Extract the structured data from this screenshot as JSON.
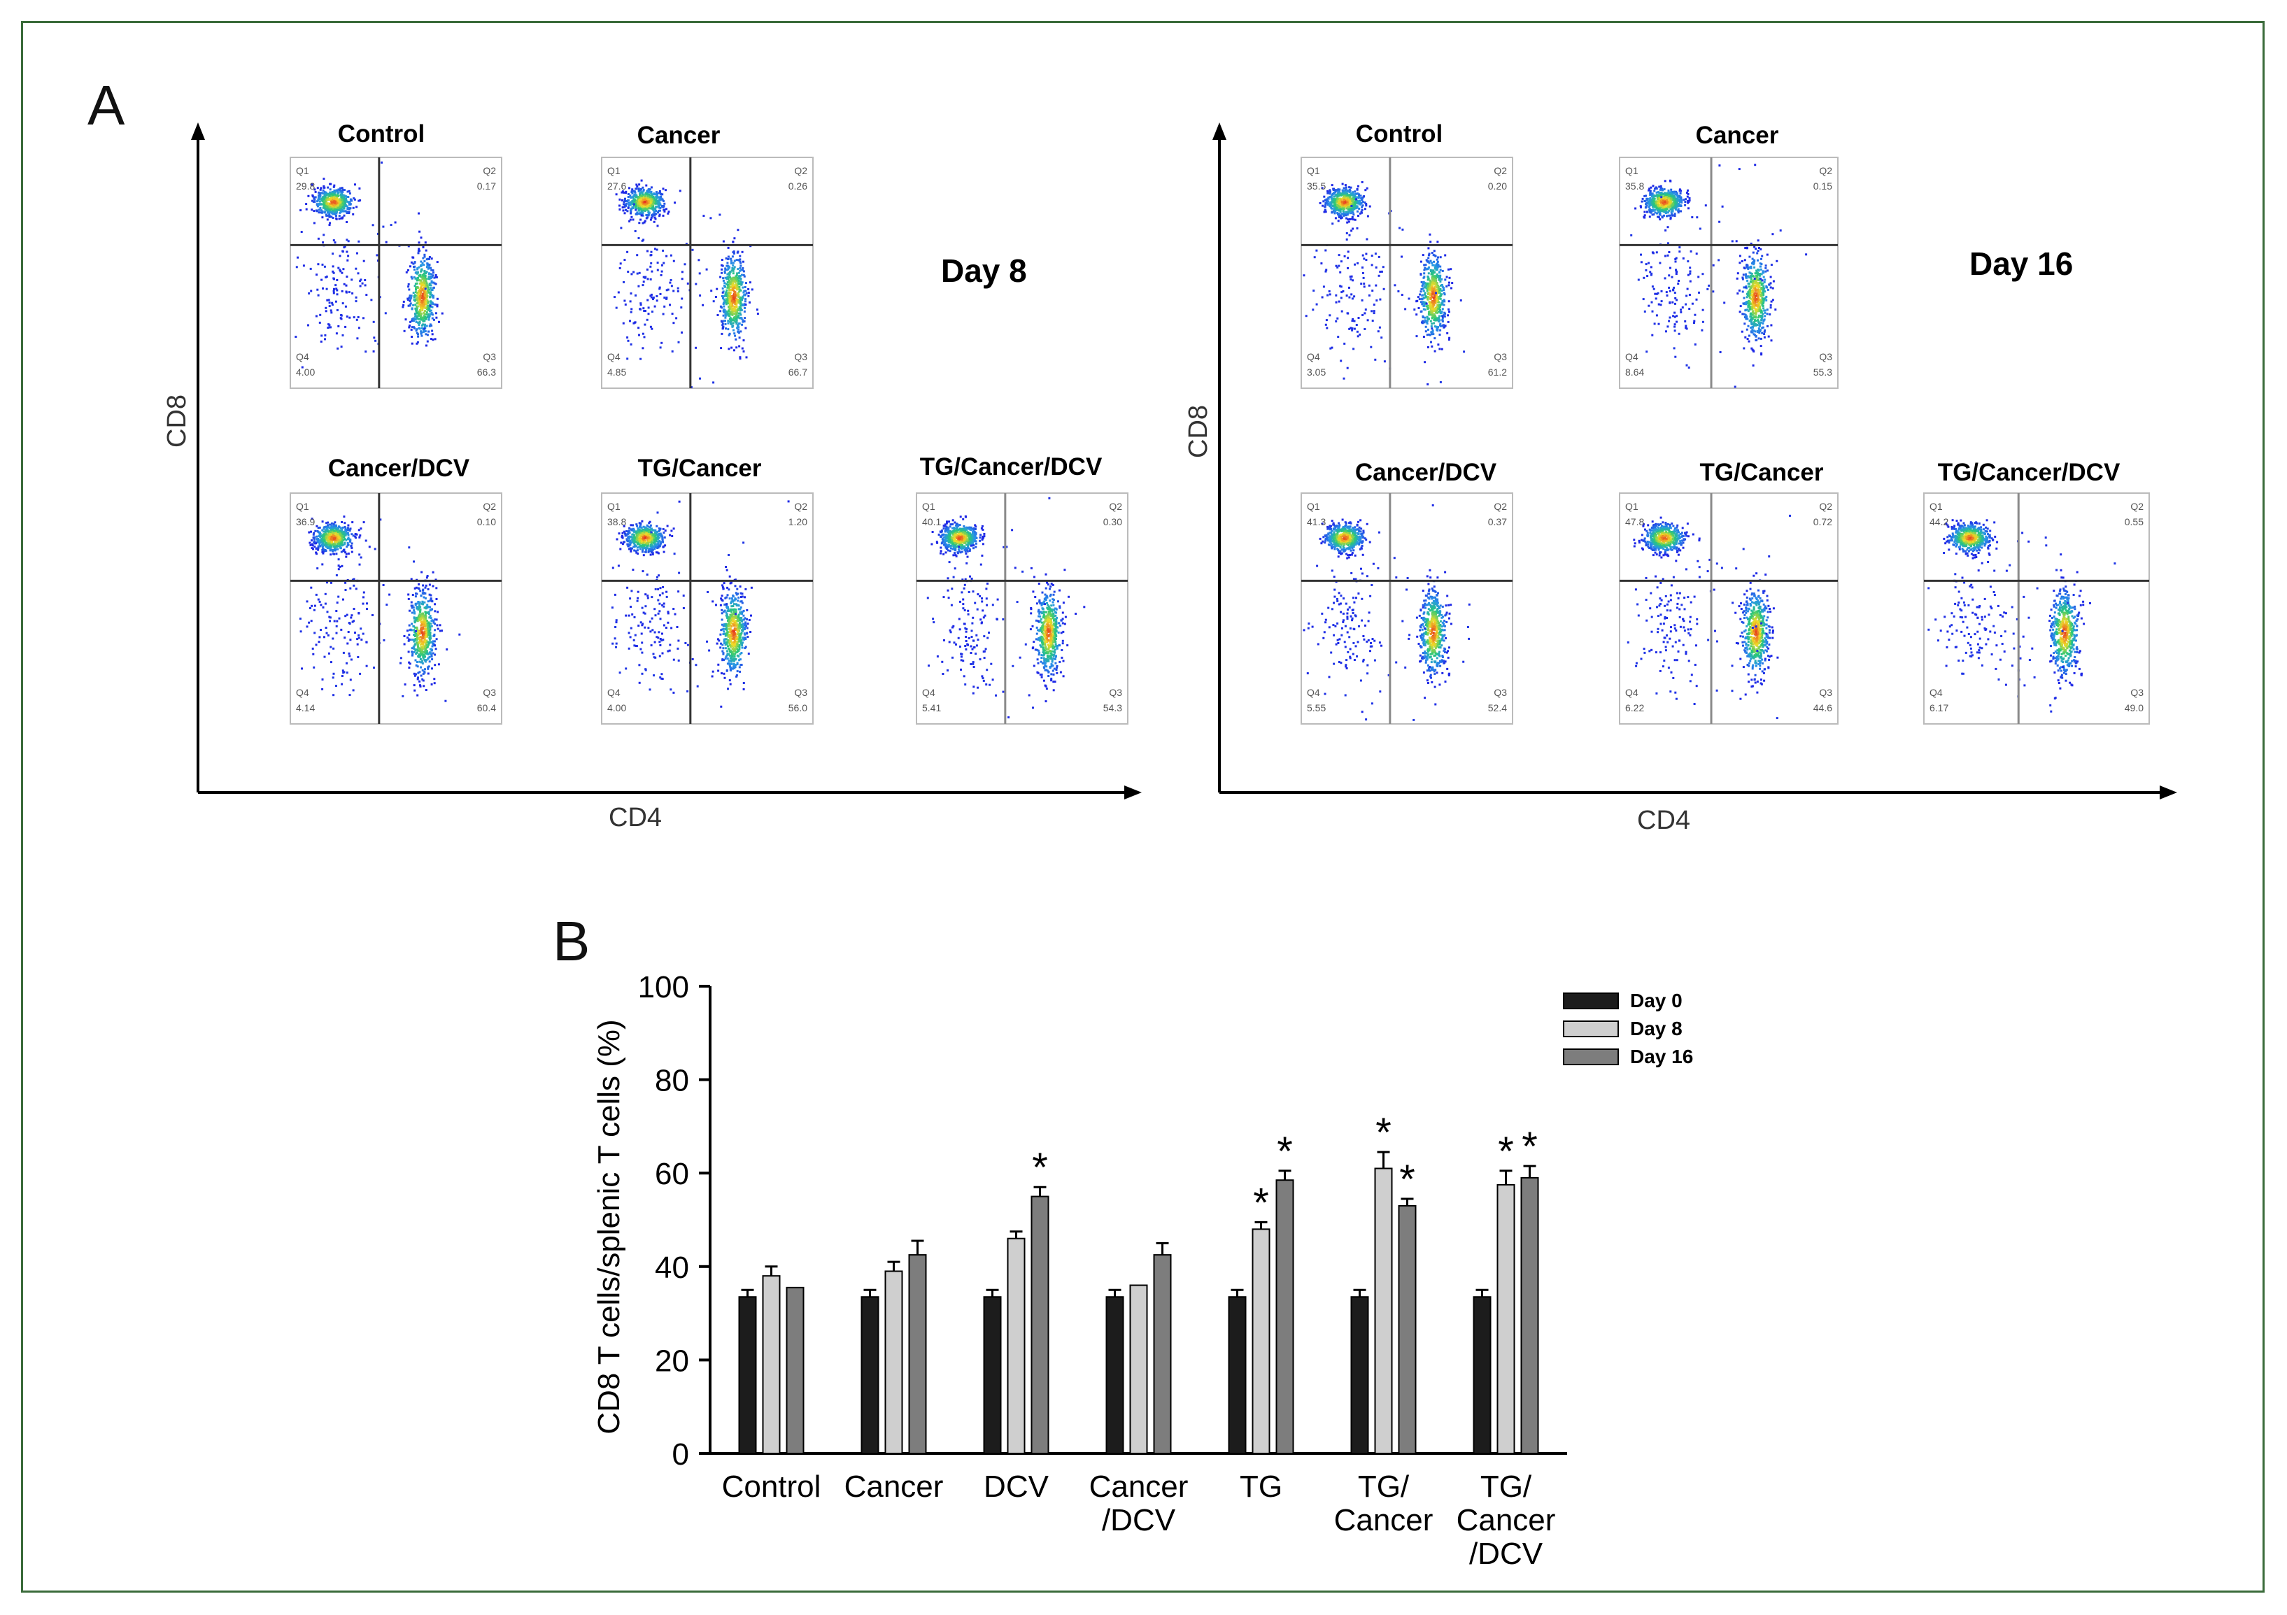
{
  "panel_a": {
    "label": "A",
    "groups": [
      {
        "day_label": "Day 8",
        "x_axis_label": "CD4",
        "y_axis_label": "CD8",
        "plots": [
          {
            "title": "Control",
            "q1": "29.8",
            "q2": "0.17",
            "q3": "66.3",
            "q4": "4.00"
          },
          {
            "title": "Cancer",
            "q1": "27.6",
            "q2": "0.26",
            "q3": "66.7",
            "q4": "4.85"
          },
          {
            "title": "Cancer/DCV",
            "q1": "36.9",
            "q2": "0.10",
            "q3": "60.4",
            "q4": "4.14"
          },
          {
            "title": "TG/Cancer",
            "q1": "38.8",
            "q2": "1.20",
            "q3": "56.0",
            "q4": "4.00"
          },
          {
            "title": "TG/Cancer/DCV",
            "q1": "40.1",
            "q2": "0.30",
            "q3": "54.3",
            "q4": "5.41"
          }
        ]
      },
      {
        "day_label": "Day 16",
        "x_axis_label": "CD4",
        "y_axis_label": "CD8",
        "plots": [
          {
            "title": "Control",
            "q1": "35.5",
            "q2": "0.20",
            "q3": "61.2",
            "q4": "3.05"
          },
          {
            "title": "Cancer",
            "q1": "35.8",
            "q2": "0.15",
            "q3": "55.3",
            "q4": "8.64"
          },
          {
            "title": "Cancer/DCV",
            "q1": "41.3",
            "q2": "0.37",
            "q3": "52.4",
            "q4": "5.55"
          },
          {
            "title": "TG/Cancer",
            "q1": "47.8",
            "q2": "0.72",
            "q3": "44.6",
            "q4": "6.22"
          },
          {
            "title": "TG/Cancer/DCV",
            "q1": "44.2",
            "q2": "0.55",
            "q3": "49.0",
            "q4": "6.17"
          }
        ]
      }
    ]
  },
  "chart_data": {
    "type": "bar",
    "panel_label": "B",
    "title": "",
    "xlabel": "",
    "ylabel": "CD8 T cells/splenic T cells (%)",
    "ylim": [
      0,
      100
    ],
    "yticks": [
      0,
      20,
      40,
      60,
      80,
      100
    ],
    "categories": [
      [
        "Control"
      ],
      [
        "Cancer"
      ],
      [
        "DCV"
      ],
      [
        "Cancer",
        "/DCV"
      ],
      [
        "TG"
      ],
      [
        "TG/",
        "Cancer"
      ],
      [
        "TG/",
        "Cancer",
        "/DCV"
      ]
    ],
    "series": [
      {
        "name": "Day 0",
        "color": "#1c1c1c",
        "values": [
          33.5,
          33.5,
          33.5,
          33.5,
          33.5,
          33.5,
          33.5
        ],
        "errors": [
          1.5,
          1.5,
          1.5,
          1.5,
          1.5,
          1.5,
          1.5
        ],
        "significant": [
          false,
          false,
          false,
          false,
          false,
          false,
          false
        ]
      },
      {
        "name": "Day 8",
        "color": "#cfcfcf",
        "values": [
          38,
          39,
          46,
          36,
          48,
          61,
          57.5
        ],
        "errors": [
          2,
          2,
          1.5,
          0,
          1.5,
          3.5,
          3
        ],
        "significant": [
          false,
          false,
          false,
          false,
          true,
          true,
          true
        ]
      },
      {
        "name": "Day 16",
        "color": "#7d7d7d",
        "values": [
          35.5,
          42.5,
          55,
          42.5,
          58.5,
          53,
          59
        ],
        "errors": [
          0,
          3,
          2,
          2.5,
          2,
          1.5,
          2.5
        ],
        "significant": [
          false,
          false,
          true,
          false,
          true,
          true,
          true
        ]
      }
    ],
    "significance_marker": "*",
    "legend_position": "top-right"
  },
  "colors": {
    "frame": "#3a6b3a",
    "axis": "#000000",
    "gate_line": "#333333",
    "gate_line_light": "#888888"
  }
}
